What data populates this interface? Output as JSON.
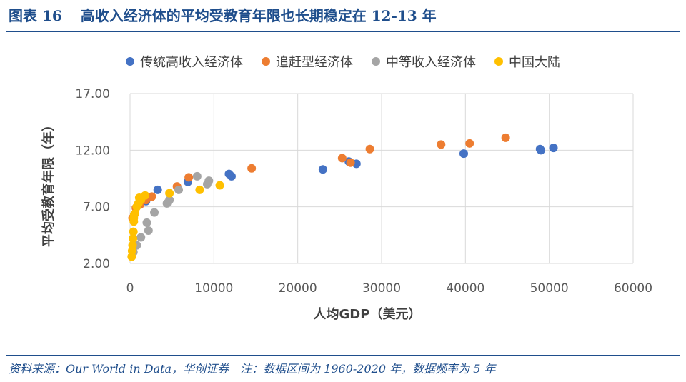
{
  "header": {
    "figure_label": "图表 16",
    "figure_title": "高收入经济体的平均受教育年限也长期稳定在 12-13 年"
  },
  "footer": {
    "source": "资料来源：Our World in Data，华创证券",
    "note": "注：数据区间为 1960-2020 年，数据频率为 5 年"
  },
  "chart_data": {
    "type": "scatter",
    "title": "",
    "xlabel": "人均GDP（美元）",
    "ylabel": "平均受教育年限（年）",
    "xlim": [
      0,
      60000
    ],
    "ylim": [
      2,
      17
    ],
    "x_ticks": [
      0,
      10000,
      20000,
      30000,
      40000,
      50000,
      60000
    ],
    "x_tick_labels": [
      "0",
      "10000",
      "20000",
      "30000",
      "40000",
      "50000",
      "60000"
    ],
    "y_ticks": [
      2,
      7,
      12,
      17
    ],
    "y_tick_labels": [
      "2.00",
      "7.00",
      "12.00",
      "17.00"
    ],
    "grid": "vertical and horizontal gridlines",
    "legend_position": "top",
    "series": [
      {
        "name": "传统高收入经济体",
        "color": "#4472c4",
        "points": [
          [
            1900,
            7.5
          ],
          [
            3300,
            8.5
          ],
          [
            6900,
            9.2
          ],
          [
            11800,
            9.9
          ],
          [
            12100,
            9.7
          ],
          [
            23000,
            10.3
          ],
          [
            26100,
            11.0
          ],
          [
            27000,
            10.8
          ],
          [
            39800,
            11.7
          ],
          [
            48900,
            12.1
          ],
          [
            49000,
            12.0
          ],
          [
            50500,
            12.2
          ]
        ]
      },
      {
        "name": "追赶型经济体",
        "color": "#ed7d31",
        "points": [
          [
            300,
            6.0
          ],
          [
            700,
            6.9
          ],
          [
            1200,
            7.2
          ],
          [
            1900,
            7.6
          ],
          [
            2600,
            7.9
          ],
          [
            5600,
            8.8
          ],
          [
            7000,
            9.6
          ],
          [
            14500,
            10.4
          ],
          [
            25300,
            11.3
          ],
          [
            26300,
            10.9
          ],
          [
            28600,
            12.1
          ],
          [
            37100,
            12.5
          ],
          [
            40500,
            12.6
          ],
          [
            44800,
            13.1
          ]
        ]
      },
      {
        "name": "中等收入经济体",
        "color": "#a5a5a5",
        "points": [
          [
            400,
            3.0
          ],
          [
            800,
            3.6
          ],
          [
            1300,
            4.3
          ],
          [
            2200,
            4.9
          ],
          [
            2000,
            5.6
          ],
          [
            2900,
            6.5
          ],
          [
            4400,
            7.3
          ],
          [
            4700,
            7.6
          ],
          [
            5800,
            8.5
          ],
          [
            8000,
            9.7
          ],
          [
            9200,
            9.0
          ],
          [
            9400,
            9.3
          ]
        ]
      },
      {
        "name": "中国大陆",
        "color": "#ffc000",
        "points": [
          [
            200,
            2.6
          ],
          [
            250,
            3.1
          ],
          [
            300,
            3.6
          ],
          [
            350,
            4.2
          ],
          [
            400,
            4.8
          ],
          [
            450,
            5.7
          ],
          [
            450,
            6.0
          ],
          [
            500,
            6.3
          ],
          [
            600,
            6.4
          ],
          [
            800,
            7.0
          ],
          [
            1000,
            7.3
          ],
          [
            1100,
            7.8
          ],
          [
            1300,
            7.6
          ],
          [
            1800,
            8.0
          ],
          [
            4700,
            8.2
          ],
          [
            8300,
            8.5
          ],
          [
            10700,
            8.9
          ]
        ]
      }
    ]
  }
}
